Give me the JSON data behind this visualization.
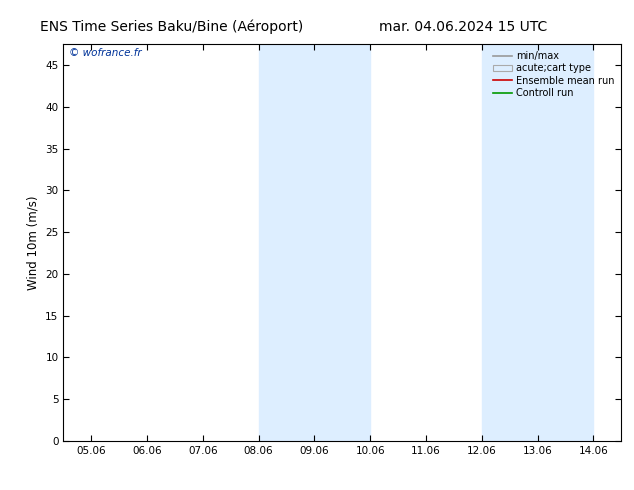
{
  "title_left": "ENS Time Series Baku/Bine (Aéroport)",
  "title_right": "mar. 04.06.2024 15 UTC",
  "ylabel": "Wind 10m (m/s)",
  "ylim": [
    0,
    47.5
  ],
  "yticks": [
    0,
    5,
    10,
    15,
    20,
    25,
    30,
    35,
    40,
    45
  ],
  "xlabels": [
    "05.06",
    "06.06",
    "07.06",
    "08.06",
    "09.06",
    "10.06",
    "11.06",
    "12.06",
    "13.06",
    "14.06"
  ],
  "xtick_positions": [
    0,
    1,
    2,
    3,
    4,
    5,
    6,
    7,
    8,
    9
  ],
  "shade_bands": [
    [
      2.5,
      3.5
    ],
    [
      3.5,
      5.0
    ],
    [
      6.5,
      7.5
    ],
    [
      7.5,
      9.0
    ]
  ],
  "shade_color": "#ddeeff",
  "background_color": "#ffffff",
  "plot_bg_color": "#ffffff",
  "watermark": "© wofrance.fr",
  "watermark_color": "#003399",
  "legend_entries": [
    "min/max",
    "acute;cart type",
    "Ensemble mean run",
    "Controll run"
  ],
  "title_fontsize": 10,
  "tick_fontsize": 7.5,
  "ylabel_fontsize": 8.5
}
